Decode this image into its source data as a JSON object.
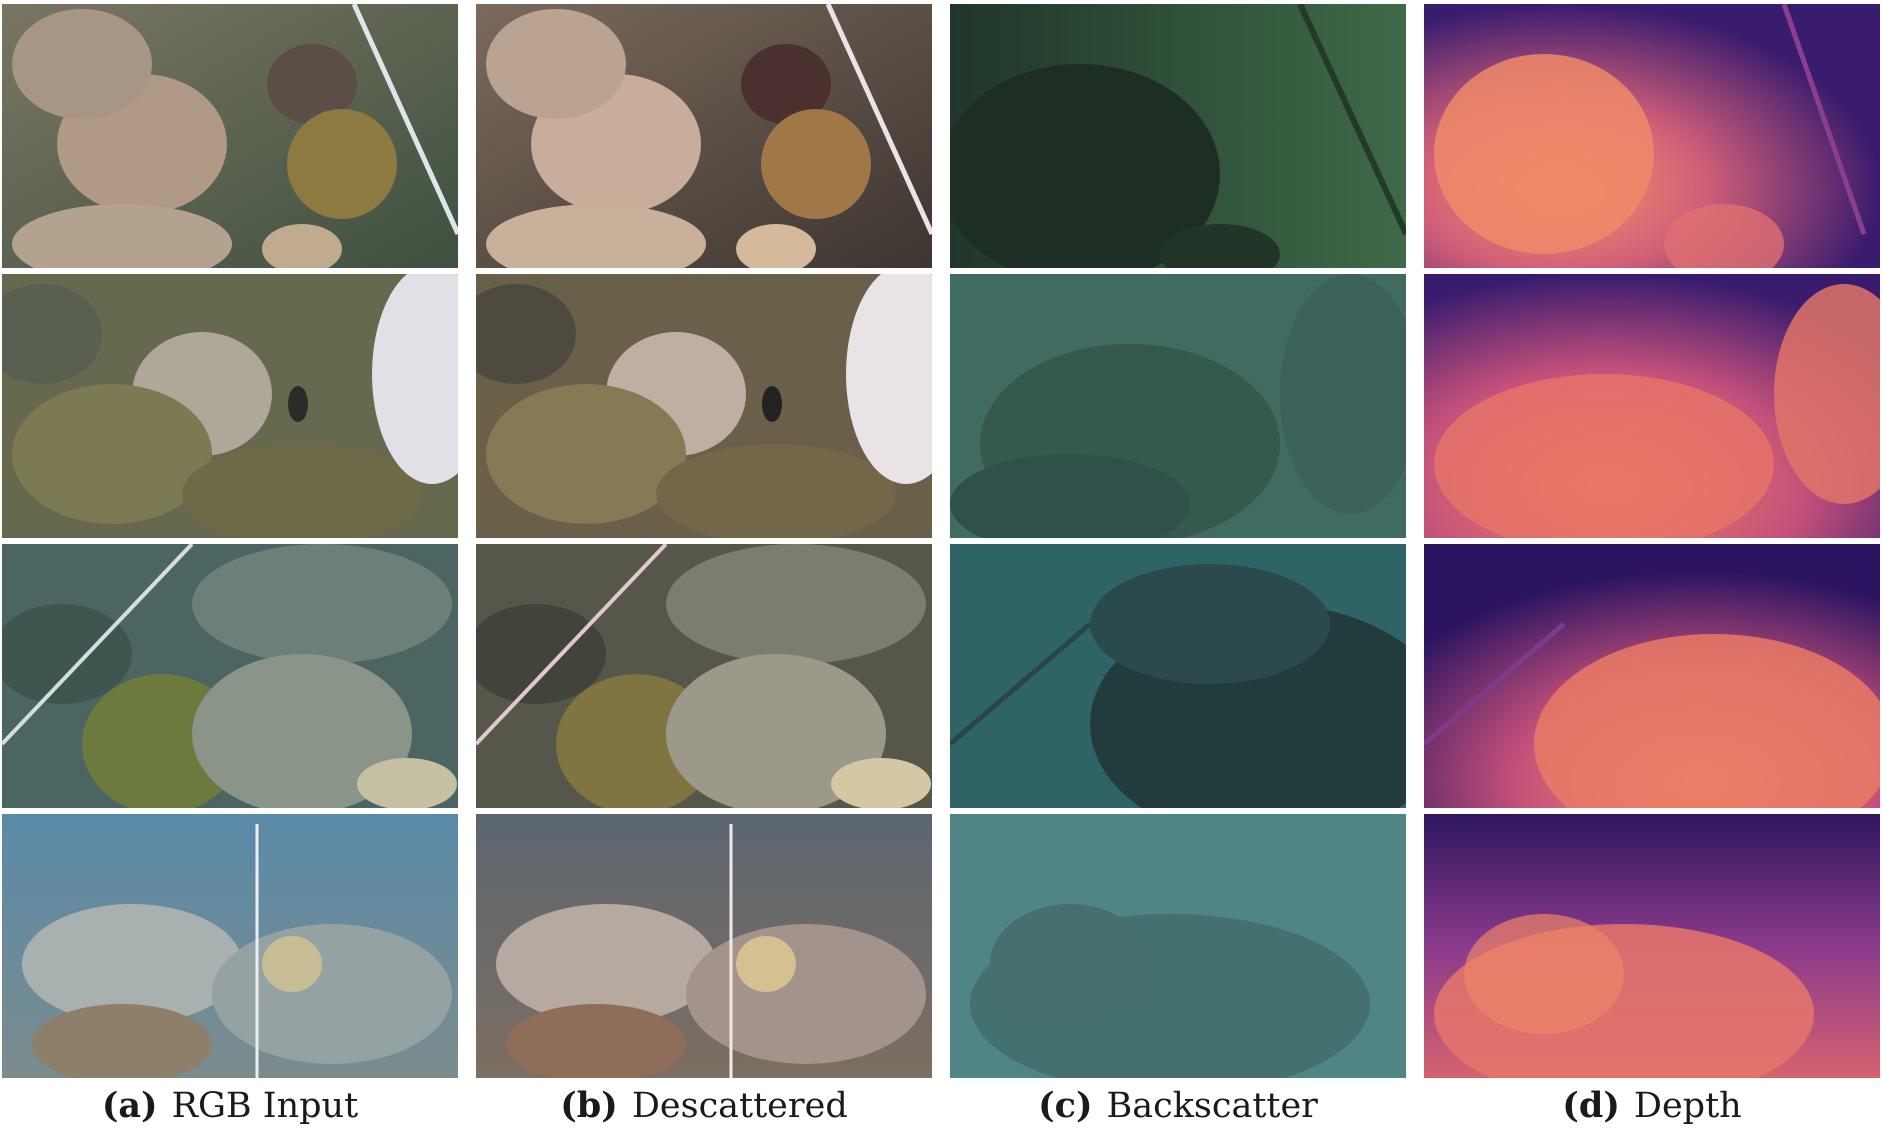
{
  "figure": {
    "columns": [
      {
        "label": "(a)",
        "title": "RGB Input"
      },
      {
        "label": "(b)",
        "title": "Descattered"
      },
      {
        "label": "(c)",
        "title": "Backscatter"
      },
      {
        "label": "(d)",
        "title": "Depth"
      }
    ],
    "tiles": [
      {
        "column": "rgb-input",
        "row": 1,
        "scene": "coral reef with boulder corals and a transect line"
      },
      {
        "column": "descattered",
        "row": 1,
        "scene": "color-corrected coral reef"
      },
      {
        "column": "backscatter",
        "row": 1,
        "scene": "green haze map"
      },
      {
        "column": "depth",
        "row": 1,
        "scene": "depth map, orange near, purple far"
      },
      {
        "column": "rgb-input",
        "row": 2,
        "scene": "brain coral and reef fish"
      },
      {
        "column": "descattered",
        "row": 2,
        "scene": "color-corrected brain coral"
      },
      {
        "column": "backscatter",
        "row": 2,
        "scene": "teal haze map"
      },
      {
        "column": "depth",
        "row": 2,
        "scene": "depth map"
      },
      {
        "column": "rgb-input",
        "row": 3,
        "scene": "branching staghorn corals with a transect line"
      },
      {
        "column": "descattered",
        "row": 3,
        "scene": "color-corrected branching corals"
      },
      {
        "column": "backscatter",
        "row": 3,
        "scene": "blue-teal haze map"
      },
      {
        "column": "depth",
        "row": 3,
        "scene": "depth map"
      },
      {
        "column": "rgb-input",
        "row": 4,
        "scene": "blue-tinted reef with measuring tape"
      },
      {
        "column": "descattered",
        "row": 4,
        "scene": "color-corrected reef with measuring tape"
      },
      {
        "column": "backscatter",
        "row": 4,
        "scene": "light teal haze map"
      },
      {
        "column": "depth",
        "row": 4,
        "scene": "depth map"
      }
    ]
  },
  "colors": {
    "rgb_row1": "#5f6a52",
    "rgb_row2": "#6b6d4f",
    "rgb_row3": "#4f6a66",
    "rgb_row4": "#5c8296",
    "desc_row1": "#6a5b4e",
    "desc_row2": "#6e6650",
    "desc_row3": "#5d5d50",
    "desc_row4": "#6e6058",
    "back_row1": "#2b4a35",
    "back_row2": "#3f6a5e",
    "back_row3": "#2c5a5a",
    "back_row4": "#4f8482",
    "depth_far": "#3a1c6e",
    "depth_mid": "#9a3d8c",
    "depth_near": "#f08a66"
  }
}
